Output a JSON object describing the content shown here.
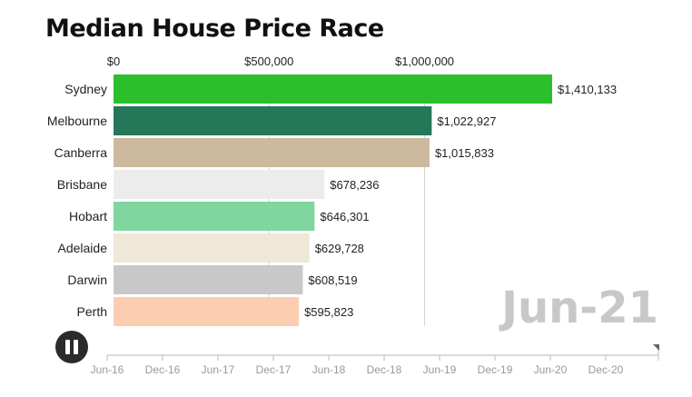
{
  "title": "Median House Price Race",
  "current_date": "Jun-21",
  "chart_data": {
    "type": "bar",
    "orientation": "horizontal",
    "title": "Median House Price Race",
    "categories": [
      "Sydney",
      "Melbourne",
      "Canberra",
      "Brisbane",
      "Hobart",
      "Adelaide",
      "Darwin",
      "Perth"
    ],
    "values": [
      1410133,
      1022927,
      1015833,
      678236,
      646301,
      629728,
      608519,
      595823
    ],
    "value_labels": [
      "$1,410,133",
      "$1,022,927",
      "$1,015,833",
      "$678,236",
      "$646,301",
      "$629,728",
      "$608,519",
      "$595,823"
    ],
    "colors": [
      "#2bc02b",
      "#25775a",
      "#ccb99e",
      "#ececec",
      "#7fd69f",
      "#efe7d7",
      "#c8c8c8",
      "#fccdb1"
    ],
    "x_ticks": [
      0,
      500000,
      1000000
    ],
    "x_tick_labels": [
      "$0",
      "$500,000",
      "$1,000,000"
    ],
    "xlim": [
      0,
      1410133
    ],
    "grid": true
  },
  "timeline": {
    "labels": [
      "Jun-16",
      "Dec-16",
      "Jun-17",
      "Dec-17",
      "Jun-18",
      "Dec-18",
      "Jun-19",
      "Dec-19",
      "Jun-20",
      "Dec-20"
    ],
    "progress": 1.0
  },
  "controls": {
    "pause_icon": "pause-icon"
  }
}
